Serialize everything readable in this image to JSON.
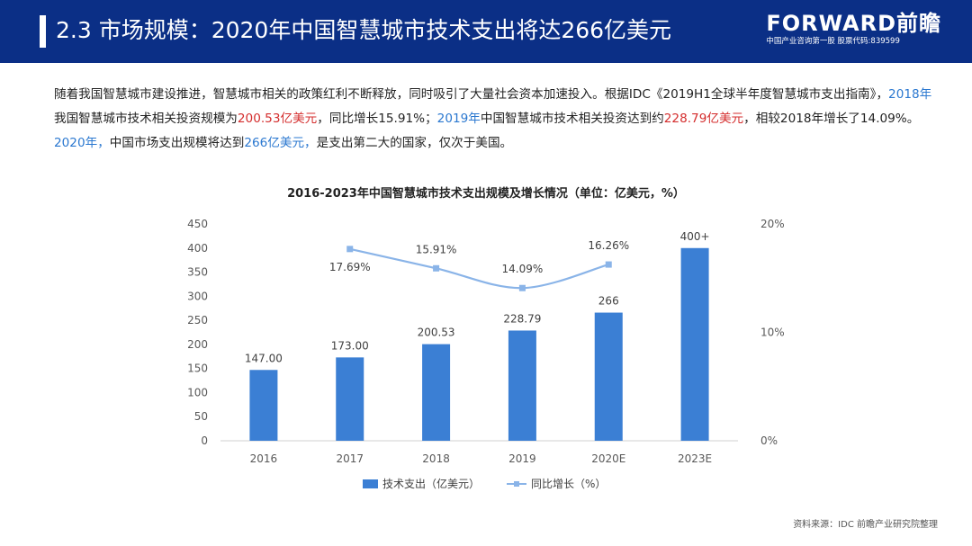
{
  "header": {
    "title": "2.3 市场规模：2020年中国智慧城市技术支出将达266亿美元",
    "brand_name": "FORWARD前瞻",
    "brand_sub": "中国产业咨询第一股 股票代码:839599"
  },
  "intro": {
    "p1": "随着我国智慧城市建设推进，智慧城市相关的政策红利不断释放，同时吸引了大量社会资本加速投入。根据IDC《2019H1全球半年度智慧城市支出指南》，",
    "p2": "2018年",
    "p3": "我国智慧城市技术相关投资规模为",
    "p4": "200.53亿美元",
    "p5": "，同比增长15.91%；",
    "p6": "2019年",
    "p7": "中国智慧城市技术相关投资达到约",
    "p8": "228.79亿美元",
    "p9": "，相较2018年增长了14.09%。",
    "p10": "2020年，",
    "p11": "中国市场支出规模将达到",
    "p12": "266亿美元，",
    "p13": "是支出第二大的国家，仅次于美国。"
  },
  "chart_data": {
    "type": "bar",
    "title": "2016-2023年中国智慧城市技术支出规模及增长情况（单位：亿美元，%）",
    "categories": [
      "2016",
      "2017",
      "2018",
      "2019",
      "2020E",
      "2023E"
    ],
    "series": [
      {
        "name": "技术支出（亿美元）",
        "type": "bar",
        "axis": "left",
        "values": [
          147,
          173,
          200.53,
          228.79,
          266,
          400
        ],
        "labels": [
          "147.00",
          "173.00",
          "200.53",
          "228.79",
          "266",
          "400+"
        ]
      },
      {
        "name": "同比增长（%）",
        "type": "line",
        "axis": "right",
        "values": [
          null,
          17.69,
          15.91,
          14.09,
          16.26,
          null
        ],
        "labels": [
          "",
          "17.69%",
          "15.91%",
          "14.09%",
          "16.26%",
          ""
        ]
      }
    ],
    "ylim": [
      0,
      450
    ],
    "yticks": [
      "0",
      "50",
      "100",
      "150",
      "200",
      "250",
      "300",
      "350",
      "400",
      "450"
    ],
    "y2lim": [
      0,
      20
    ],
    "y2ticks": [
      "0%",
      "10%",
      "20%"
    ],
    "legend_position": "bottom",
    "colors": {
      "bar": "#3b7fd4",
      "line": "#8ab4e8"
    }
  },
  "source": "资料来源：IDC 前瞻产业研究院整理"
}
